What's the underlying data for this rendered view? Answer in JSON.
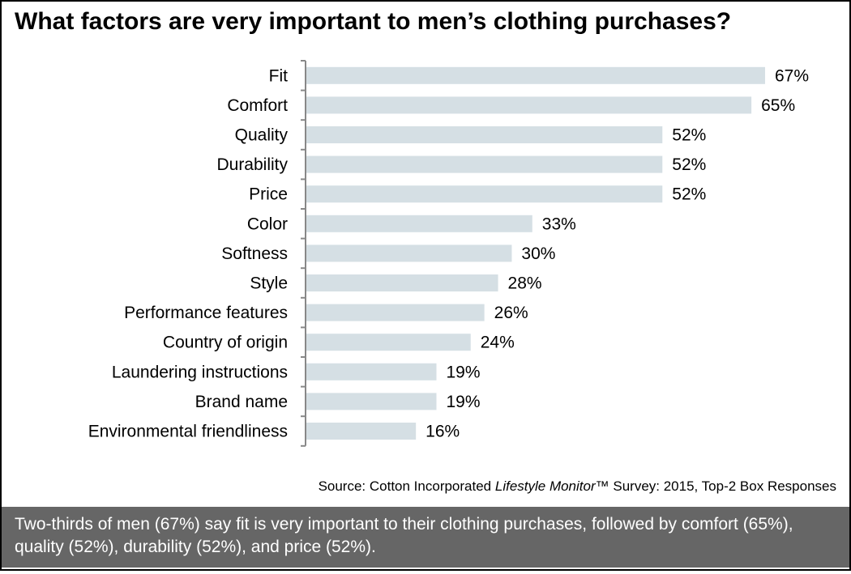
{
  "chart_data": {
    "type": "bar",
    "orientation": "horizontal",
    "title": "What factors are very important to men’s clothing purchases?",
    "categories": [
      "Fit",
      "Comfort",
      "Quality",
      "Durability",
      "Price",
      "Color",
      "Softness",
      "Style",
      "Performance features",
      "Country of origin",
      "Laundering instructions",
      "Brand name",
      "Environmental friendliness"
    ],
    "values": [
      67,
      65,
      52,
      52,
      52,
      33,
      30,
      28,
      26,
      24,
      19,
      19,
      16
    ],
    "value_suffix": "%",
    "xlim": [
      0,
      70
    ],
    "grid": false,
    "bar_color": "#d5dfe4",
    "axis_color": "#888888"
  },
  "source": {
    "prefix": "Source: Cotton Incorporated ",
    "italic": "Lifestyle Monitor",
    "suffix": "™ Survey: 2015, Top-2 Box Responses"
  },
  "caption": "Two-thirds of men (67%) say fit is very important to their clothing purchases, followed by comfort (65%), quality (52%), durability (52%), and price (52%)."
}
